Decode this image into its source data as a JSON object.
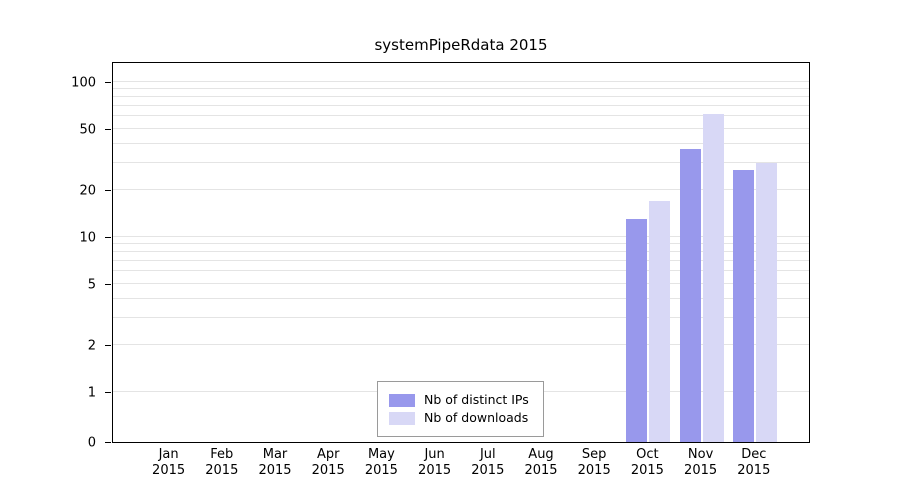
{
  "title": "systemPipeRdata 2015",
  "chart_data": {
    "type": "bar",
    "title": "systemPipeRdata 2015",
    "y_scale": "log",
    "ylim": [
      0,
      100
    ],
    "grid": true,
    "grid_color": "#e4e4e4",
    "legend_position": "bottom-center",
    "y_ticks": [
      0,
      1,
      2,
      5,
      10,
      20,
      50,
      100
    ],
    "y_gridlines": [
      1,
      2,
      3,
      4,
      5,
      6,
      7,
      8,
      9,
      10,
      20,
      30,
      40,
      50,
      60,
      70,
      80,
      90,
      100
    ],
    "categories": [
      {
        "month": "Jan",
        "year": "2015"
      },
      {
        "month": "Feb",
        "year": "2015"
      },
      {
        "month": "Mar",
        "year": "2015"
      },
      {
        "month": "Apr",
        "year": "2015"
      },
      {
        "month": "May",
        "year": "2015"
      },
      {
        "month": "Jun",
        "year": "2015"
      },
      {
        "month": "Jul",
        "year": "2015"
      },
      {
        "month": "Aug",
        "year": "2015"
      },
      {
        "month": "Sep",
        "year": "2015"
      },
      {
        "month": "Oct",
        "year": "2015"
      },
      {
        "month": "Nov",
        "year": "2015"
      },
      {
        "month": "Dec",
        "year": "2015"
      }
    ],
    "series": [
      {
        "name": "Nb of distinct IPs",
        "color": "#9898ec",
        "values": [
          0,
          0,
          0,
          0,
          0,
          0,
          0,
          0,
          0,
          13,
          37,
          27
        ]
      },
      {
        "name": "Nb of downloads",
        "color": "#d8d8f6",
        "values": [
          0,
          0,
          0,
          0,
          0,
          0,
          0,
          0,
          0,
          17,
          62,
          30
        ]
      }
    ]
  }
}
